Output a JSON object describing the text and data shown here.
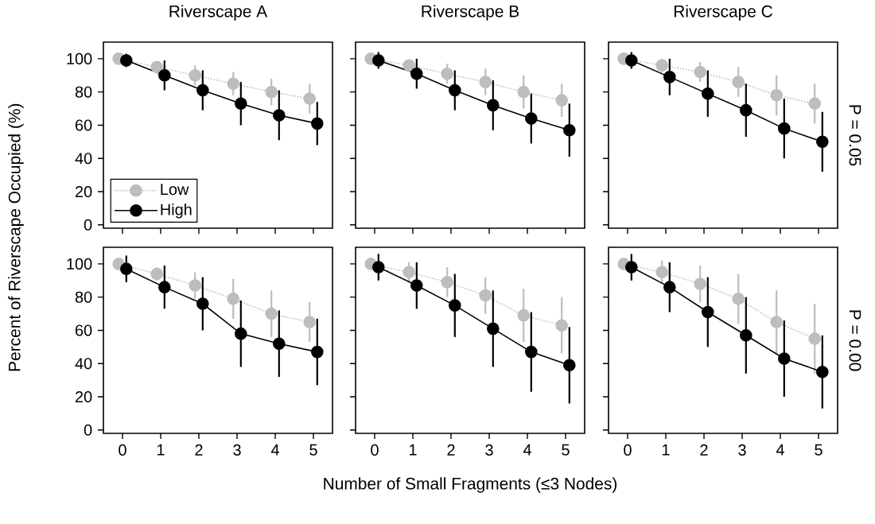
{
  "chart_data": [
    {
      "type": "line",
      "title": "Riverscape A",
      "ylabel": "Percent of Riverscape Occupied (%)",
      "xlim": [
        -0.5,
        5.5
      ],
      "xticks": [
        0,
        1,
        2,
        3,
        4,
        5
      ],
      "ylim": [
        -2,
        110
      ],
      "yticks": [
        0,
        20,
        40,
        60,
        80,
        100
      ],
      "marker": "circle",
      "tick_labels": "y",
      "legend": "bottom left",
      "series": [
        {
          "name": "Low",
          "color": "#bdbdbd",
          "line_style": "dotted",
          "x": [
            -0.1,
            0.9,
            1.9,
            2.9,
            3.9,
            4.9
          ],
          "values": [
            100,
            95,
            90,
            85,
            80,
            76
          ],
          "errors": [
            1,
            3,
            6,
            7,
            8,
            9
          ]
        },
        {
          "name": "High",
          "color": "#000000",
          "line_style": "solid",
          "x": [
            0.1,
            1.1,
            2.1,
            3.1,
            4.1,
            5.1
          ],
          "values": [
            99,
            90,
            81,
            73,
            66,
            61
          ],
          "errors": [
            4,
            9,
            12,
            13,
            15,
            13
          ]
        }
      ]
    },
    {
      "type": "line",
      "title": "Riverscape B",
      "xlim": [
        -0.5,
        5.5
      ],
      "xticks": [
        0,
        1,
        2,
        3,
        4,
        5
      ],
      "ylim": [
        -2,
        110
      ],
      "yticks": [
        0,
        20,
        40,
        60,
        80,
        100
      ],
      "marker": "circle",
      "tick_labels": false,
      "series": [
        {
          "color": "#bdbdbd",
          "line_style": "dotted",
          "x": [
            -0.1,
            0.9,
            1.9,
            2.9,
            3.9,
            4.9
          ],
          "values": [
            100,
            96,
            91,
            86,
            80,
            75
          ],
          "errors": [
            1,
            3,
            6,
            8,
            10,
            10
          ]
        },
        {
          "color": "#000000",
          "line_style": "solid",
          "x": [
            0.1,
            1.1,
            2.1,
            3.1,
            4.1,
            5.1
          ],
          "values": [
            99,
            91,
            81,
            72,
            64,
            57
          ],
          "errors": [
            5,
            9,
            12,
            15,
            15,
            16
          ]
        }
      ]
    },
    {
      "type": "line",
      "title": "Riverscape C",
      "y2label": "P = 0.05",
      "xlim": [
        -0.5,
        5.5
      ],
      "xticks": [
        0,
        1,
        2,
        3,
        4,
        5
      ],
      "ylim": [
        -2,
        110
      ],
      "yticks": [
        0,
        20,
        40,
        60,
        80,
        100
      ],
      "marker": "circle",
      "tick_labels": false,
      "series": [
        {
          "color": "#bdbdbd",
          "line_style": "dotted",
          "x": [
            -0.1,
            0.9,
            1.9,
            2.9,
            3.9,
            4.9
          ],
          "values": [
            100,
            96,
            92,
            86,
            78,
            73
          ],
          "errors": [
            1,
            4,
            6,
            9,
            12,
            12
          ]
        },
        {
          "color": "#000000",
          "line_style": "solid",
          "x": [
            0.1,
            1.1,
            2.1,
            3.1,
            4.1,
            5.1
          ],
          "values": [
            99,
            89,
            79,
            69,
            58,
            50
          ],
          "errors": [
            5,
            11,
            14,
            16,
            18,
            18
          ]
        }
      ]
    },
    {
      "type": "line",
      "xlim": [
        -0.5,
        5.5
      ],
      "xticks": [
        0,
        1,
        2,
        3,
        4,
        5
      ],
      "ylim": [
        -2,
        110
      ],
      "yticks": [
        0,
        20,
        40,
        60,
        80,
        100
      ],
      "marker": "circle",
      "series": [
        {
          "color": "#bdbdbd",
          "line_style": "dotted",
          "x": [
            -0.1,
            0.9,
            1.9,
            2.9,
            3.9,
            4.9
          ],
          "values": [
            100,
            94,
            87,
            79,
            70,
            65
          ],
          "errors": [
            1,
            4,
            8,
            12,
            14,
            12
          ]
        },
        {
          "color": "#000000",
          "line_style": "solid",
          "x": [
            0.1,
            1.1,
            2.1,
            3.1,
            4.1,
            5.1
          ],
          "values": [
            97,
            86,
            76,
            58,
            52,
            47
          ],
          "errors": [
            8,
            13,
            16,
            20,
            20,
            20
          ]
        }
      ]
    },
    {
      "type": "line",
      "xlabel": "Number of Small Fragments (≤3 Nodes)",
      "xlim": [
        -0.5,
        5.5
      ],
      "xticks": [
        0,
        1,
        2,
        3,
        4,
        5
      ],
      "ylim": [
        -2,
        110
      ],
      "yticks": [
        0,
        20,
        40,
        60,
        80,
        100
      ],
      "marker": "circle",
      "tick_labels": "x",
      "series": [
        {
          "color": "#bdbdbd",
          "line_style": "dotted",
          "x": [
            -0.1,
            0.9,
            1.9,
            2.9,
            3.9,
            4.9
          ],
          "values": [
            100,
            95,
            89,
            81,
            69,
            63
          ],
          "errors": [
            1,
            6,
            9,
            11,
            16,
            17
          ]
        },
        {
          "color": "#000000",
          "line_style": "solid",
          "x": [
            0.1,
            1.1,
            2.1,
            3.1,
            4.1,
            5.1
          ],
          "values": [
            98,
            87,
            75,
            61,
            47,
            39
          ],
          "errors": [
            8,
            14,
            19,
            23,
            24,
            23
          ]
        }
      ]
    },
    {
      "type": "line",
      "y2label": "P = 0.00",
      "xlim": [
        -0.5,
        5.5
      ],
      "xticks": [
        0,
        1,
        2,
        3,
        4,
        5
      ],
      "ylim": [
        -2,
        110
      ],
      "yticks": [
        0,
        20,
        40,
        60,
        80,
        100
      ],
      "marker": "circle",
      "tick_labels": "x",
      "series": [
        {
          "color": "#bdbdbd",
          "line_style": "dotted",
          "x": [
            -0.1,
            0.9,
            1.9,
            2.9,
            3.9,
            4.9
          ],
          "values": [
            100,
            95,
            88,
            79,
            65,
            55
          ],
          "errors": [
            1,
            7,
            11,
            15,
            19,
            21
          ]
        },
        {
          "color": "#000000",
          "line_style": "solid",
          "x": [
            0.1,
            1.1,
            2.1,
            3.1,
            4.1,
            5.1
          ],
          "values": [
            98,
            86,
            71,
            57,
            43,
            35
          ],
          "errors": [
            8,
            15,
            21,
            23,
            23,
            22
          ]
        }
      ]
    }
  ]
}
